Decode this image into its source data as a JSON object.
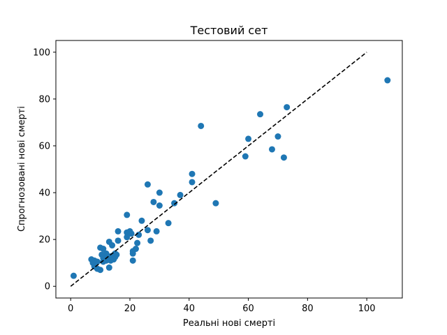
{
  "chart_data": {
    "type": "scatter",
    "title": "Тестовий сет",
    "xlabel": "Реальні нові смерті",
    "ylabel": "Спрогнозовані нові смерті",
    "xlim": [
      -5,
      112
    ],
    "ylim": [
      -5,
      105
    ],
    "xticks": [
      0,
      20,
      40,
      60,
      80,
      100
    ],
    "yticks": [
      0,
      20,
      40,
      60,
      80,
      100
    ],
    "grid": false,
    "point_color": "#1f77b4",
    "reference_line": {
      "style": "dashed",
      "color": "#000000",
      "from": [
        0,
        0
      ],
      "to": [
        100,
        100
      ]
    },
    "points": [
      [
        1,
        4.5
      ],
      [
        7,
        11.5
      ],
      [
        7.5,
        10
      ],
      [
        8,
        11
      ],
      [
        8,
        8.5
      ],
      [
        9,
        10.5
      ],
      [
        9,
        7.5
      ],
      [
        10,
        7
      ],
      [
        10,
        16.5
      ],
      [
        10.5,
        13.5
      ],
      [
        11,
        16
      ],
      [
        11,
        12
      ],
      [
        11,
        10.5
      ],
      [
        12,
        14
      ],
      [
        12,
        11
      ],
      [
        12.5,
        13
      ],
      [
        13,
        19
      ],
      [
        13,
        8
      ],
      [
        13,
        12
      ],
      [
        13.5,
        11
      ],
      [
        14,
        17.5
      ],
      [
        14,
        13
      ],
      [
        14.5,
        11.5
      ],
      [
        15,
        12.5
      ],
      [
        15,
        14
      ],
      [
        15.5,
        13.5
      ],
      [
        16,
        23.5
      ],
      [
        16,
        19.5
      ],
      [
        19,
        30.5
      ],
      [
        19,
        23
      ],
      [
        19,
        21
      ],
      [
        20,
        23.5
      ],
      [
        20.5,
        22.5
      ],
      [
        21,
        15
      ],
      [
        21,
        11
      ],
      [
        21,
        14
      ],
      [
        22,
        16
      ],
      [
        22.5,
        18.5
      ],
      [
        23,
        22
      ],
      [
        24,
        28
      ],
      [
        26,
        43.5
      ],
      [
        26,
        24
      ],
      [
        27,
        19.5
      ],
      [
        28,
        36
      ],
      [
        29,
        23.5
      ],
      [
        30,
        40
      ],
      [
        30,
        34.5
      ],
      [
        33,
        27
      ],
      [
        35,
        35.5
      ],
      [
        37,
        39
      ],
      [
        41,
        48
      ],
      [
        41,
        44.5
      ],
      [
        44,
        68.5
      ],
      [
        49,
        35.5
      ],
      [
        59,
        55.5
      ],
      [
        60,
        63
      ],
      [
        64,
        73.5
      ],
      [
        68,
        58.5
      ],
      [
        70,
        64
      ],
      [
        72,
        55
      ],
      [
        73,
        76.5
      ],
      [
        107,
        88
      ]
    ]
  }
}
